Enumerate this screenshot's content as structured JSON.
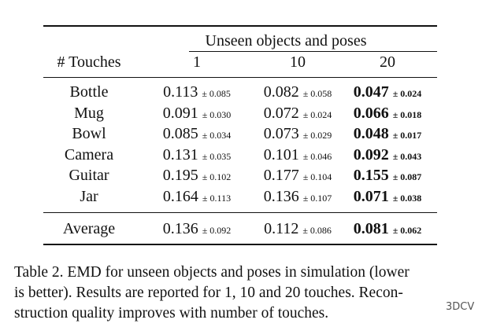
{
  "table": {
    "group_header": "Unseen objects and poses",
    "headers": [
      "# Touches",
      "1",
      "10",
      "20"
    ],
    "bold_column": 3,
    "rows": [
      [
        "Bottle",
        {
          "mean": "0.113",
          "std": "± 0.085"
        },
        {
          "mean": "0.082",
          "std": "± 0.058"
        },
        {
          "mean": "0.047",
          "std": "± 0.024"
        }
      ],
      [
        "Mug",
        {
          "mean": "0.091",
          "std": "± 0.030"
        },
        {
          "mean": "0.072",
          "std": "± 0.024"
        },
        {
          "mean": "0.066",
          "std": "± 0.018"
        }
      ],
      [
        "Bowl",
        {
          "mean": "0.085",
          "std": "± 0.034"
        },
        {
          "mean": "0.073",
          "std": "± 0.029"
        },
        {
          "mean": "0.048",
          "std": "± 0.017"
        }
      ],
      [
        "Camera",
        {
          "mean": "0.131",
          "std": "± 0.035"
        },
        {
          "mean": "0.101",
          "std": "± 0.046"
        },
        {
          "mean": "0.092",
          "std": "± 0.043"
        }
      ],
      [
        "Guitar",
        {
          "mean": "0.195",
          "std": "± 0.102"
        },
        {
          "mean": "0.177",
          "std": "± 0.104"
        },
        {
          "mean": "0.155",
          "std": "± 0.087"
        }
      ],
      [
        "Jar",
        {
          "mean": "0.164",
          "std": "± 0.113"
        },
        {
          "mean": "0.136",
          "std": "± 0.107"
        },
        {
          "mean": "0.071",
          "std": "± 0.038"
        }
      ]
    ],
    "footer": [
      "Average",
      {
        "mean": "0.136",
        "std": "± 0.092"
      },
      {
        "mean": "0.112",
        "std": "± 0.086"
      },
      {
        "mean": "0.081",
        "std": "± 0.062"
      }
    ]
  },
  "caption": {
    "lines": [
      "Table 2. EMD for unseen objects and poses in simulation (lower",
      "is better). Results are reported for 1, 10 and 20 touches. Recon-",
      "struction quality improves with number of touches."
    ]
  },
  "watermark": "3DCV"
}
